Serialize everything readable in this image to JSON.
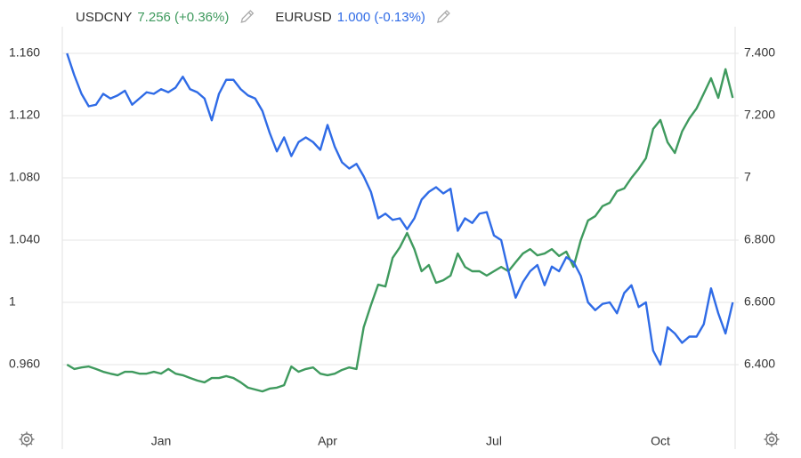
{
  "chart_data": {
    "type": "line",
    "categories": [
      null,
      null,
      null,
      null,
      null,
      null,
      null,
      null,
      null,
      null,
      null,
      null,
      null,
      "Jan",
      null,
      null,
      null,
      null,
      null,
      null,
      null,
      null,
      null,
      null,
      null,
      null,
      null,
      null,
      null,
      null,
      null,
      null,
      null,
      null,
      null,
      null,
      "Apr",
      null,
      null,
      null,
      null,
      null,
      null,
      null,
      null,
      null,
      null,
      null,
      null,
      null,
      null,
      null,
      null,
      null,
      null,
      null,
      null,
      null,
      null,
      "Jul",
      null,
      null,
      null,
      null,
      null,
      null,
      null,
      null,
      null,
      null,
      null,
      null,
      null,
      null,
      null,
      null,
      null,
      null,
      null,
      null,
      null,
      null,
      "Oct",
      null,
      null,
      null,
      null,
      null,
      null,
      null,
      null,
      null,
      null
    ],
    "series": [
      {
        "name": "USDCNY",
        "last_label": "7.256 (+0.36%)",
        "color": "#3f9a5e",
        "axis": "y2",
        "values": [
          6.4,
          6.386,
          6.391,
          6.394,
          6.386,
          6.377,
          6.371,
          6.366,
          6.377,
          6.377,
          6.371,
          6.371,
          6.377,
          6.371,
          6.386,
          6.371,
          6.366,
          6.357,
          6.349,
          6.343,
          6.357,
          6.357,
          6.363,
          6.357,
          6.343,
          6.326,
          6.32,
          6.314,
          6.323,
          6.326,
          6.334,
          6.394,
          6.377,
          6.386,
          6.391,
          6.371,
          6.366,
          6.371,
          6.383,
          6.391,
          6.386,
          6.52,
          6.591,
          6.657,
          6.651,
          6.743,
          6.777,
          6.823,
          6.771,
          6.7,
          6.72,
          6.663,
          6.671,
          6.686,
          6.757,
          6.714,
          6.7,
          6.7,
          6.686,
          6.7,
          6.714,
          6.7,
          6.729,
          6.757,
          6.771,
          6.751,
          6.757,
          6.771,
          6.749,
          6.763,
          6.714,
          6.8,
          6.863,
          6.877,
          6.909,
          6.92,
          6.957,
          6.966,
          7.0,
          7.029,
          7.063,
          7.157,
          7.186,
          7.114,
          7.08,
          7.149,
          7.191,
          7.223,
          7.271,
          7.32,
          7.257,
          7.349,
          7.257
        ]
      },
      {
        "name": "EURUSD",
        "last_label": "1.000 (-0.13%)",
        "color": "#2f6be6",
        "values": [
          1.16,
          1.146,
          1.134,
          1.126,
          1.127,
          1.134,
          1.131,
          1.133,
          1.136,
          1.127,
          1.131,
          1.135,
          1.134,
          1.137,
          1.135,
          1.138,
          1.145,
          1.137,
          1.135,
          1.131,
          1.117,
          1.134,
          1.143,
          1.143,
          1.137,
          1.133,
          1.131,
          1.123,
          1.109,
          1.097,
          1.106,
          1.094,
          1.103,
          1.106,
          1.103,
          1.098,
          1.114,
          1.1,
          1.09,
          1.086,
          1.089,
          1.081,
          1.071,
          1.054,
          1.057,
          1.053,
          1.054,
          1.047,
          1.054,
          1.066,
          1.071,
          1.074,
          1.07,
          1.073,
          1.046,
          1.054,
          1.051,
          1.057,
          1.058,
          1.043,
          1.04,
          1.02,
          1.003,
          1.013,
          1.02,
          1.024,
          1.011,
          1.023,
          1.02,
          1.029,
          1.026,
          1.017,
          1.0,
          0.995,
          0.999,
          1.0,
          0.993,
          1.006,
          1.011,
          0.997,
          1.0,
          0.969,
          0.96,
          0.984,
          0.98,
          0.974,
          0.978,
          0.978,
          0.986,
          1.009,
          0.993,
          0.98,
          1.0
        ]
      }
    ],
    "ylim": [
      0.92,
      1.18
    ],
    "yticks": [
      {
        "value": 1.16,
        "label": "1.160"
      },
      {
        "value": 1.12,
        "label": "1.120"
      },
      {
        "value": 1.08,
        "label": "1.080"
      },
      {
        "value": 1.04,
        "label": "1.040"
      },
      1,
      {
        "value": 0.96,
        "label": "0.960"
      }
    ],
    "y2lim": [
      6.2,
      7.5
    ],
    "y2ticks": [
      {
        "value": 7.4,
        "label": "7.400"
      },
      {
        "value": 7.2,
        "label": "7.200"
      },
      7,
      {
        "value": 6.8,
        "label": "6.800"
      },
      {
        "value": 6.6,
        "label": "6.600"
      },
      {
        "value": 6.4,
        "label": "6.400"
      }
    ],
    "grid": true
  }
}
